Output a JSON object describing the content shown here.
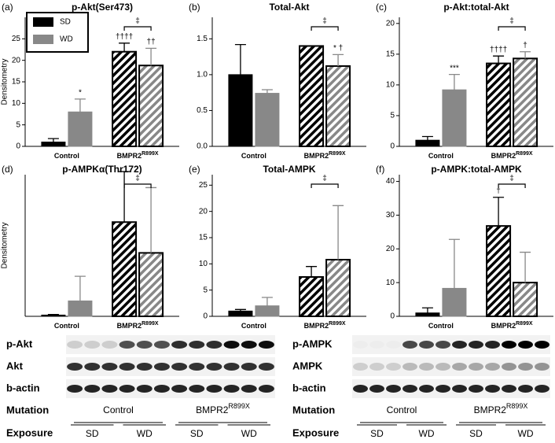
{
  "chart_data": [
    {
      "type": "bar",
      "panel": "(a)",
      "title": "p-Akt(Ser473)",
      "ylabel": "Densitometry",
      "categories": [
        "Control",
        "BMPR2"
      ],
      "category_sup": [
        null,
        "R899X"
      ],
      "hatched": [
        false,
        true
      ],
      "series": [
        {
          "name": "SD",
          "color": "#000000",
          "values": [
            1.0,
            22.0
          ],
          "errors": [
            0.8,
            2.0
          ],
          "markers": [
            null,
            "††††"
          ]
        },
        {
          "name": "WD",
          "color": "#888888",
          "values": [
            8.0,
            18.8
          ],
          "errors": [
            3.0,
            4.0
          ],
          "markers": [
            "*",
            "††"
          ]
        }
      ],
      "bracket_label": "‡",
      "legend": true,
      "legend_corner": "upper left",
      "ylim": [
        0,
        30
      ],
      "yticks": [
        0,
        5,
        10,
        15,
        20,
        25
      ]
    },
    {
      "type": "bar",
      "panel": "(b)",
      "title": "Total-Akt",
      "categories": [
        "Control",
        "BMPR2"
      ],
      "category_sup": [
        null,
        "R899X"
      ],
      "hatched": [
        false,
        true
      ],
      "series": [
        {
          "name": "SD",
          "color": "#000000",
          "values": [
            1.0,
            1.4
          ],
          "errors": [
            0.42,
            0.0
          ],
          "markers": [
            null,
            null
          ]
        },
        {
          "name": "WD",
          "color": "#888888",
          "values": [
            0.74,
            1.12
          ],
          "errors": [
            0.05,
            0.16
          ],
          "markers": [
            null,
            "* †"
          ]
        }
      ],
      "bracket_label": "‡",
      "legend": false,
      "ylim": [
        0,
        1.8
      ],
      "yticks": [
        {
          "value": 0,
          "label": "0.0"
        },
        {
          "value": 0.5,
          "label": "0.5"
        },
        {
          "value": 1,
          "label": "1.0"
        },
        {
          "value": 1.5,
          "label": "1.5"
        }
      ]
    },
    {
      "type": "bar",
      "panel": "(c)",
      "title": "p-Akt:total-Akt",
      "categories": [
        "Control",
        "BMPR2"
      ],
      "category_sup": [
        null,
        "R899X"
      ],
      "hatched": [
        false,
        true
      ],
      "series": [
        {
          "name": "SD",
          "color": "#000000",
          "values": [
            1.0,
            13.5
          ],
          "errors": [
            0.6,
            1.2
          ],
          "markers": [
            null,
            "††††"
          ]
        },
        {
          "name": "WD",
          "color": "#888888",
          "values": [
            9.2,
            14.3
          ],
          "errors": [
            2.5,
            1.1
          ],
          "markers": [
            "***",
            "†"
          ]
        }
      ],
      "bracket_label": "‡",
      "legend": false,
      "ylim": [
        0,
        21
      ],
      "yticks": [
        0,
        5,
        10,
        15,
        20
      ]
    },
    {
      "type": "bar",
      "panel": "(d)",
      "title": "p-AMPKα(Thr172)",
      "ylabel": "Densitometry",
      "categories": [
        "Control",
        "BMPR2"
      ],
      "category_sup": [
        null,
        "R899X"
      ],
      "hatched": [
        false,
        true
      ],
      "series": [
        {
          "name": "SD",
          "color": "#000000",
          "values": [
            2,
            153
          ],
          "errors": [
            1,
            82
          ],
          "markers": [
            null,
            null
          ]
        },
        {
          "name": "WD",
          "color": "#888888",
          "values": [
            25,
            103
          ],
          "errors": [
            40,
            106
          ],
          "markers": [
            null,
            null
          ]
        }
      ],
      "bracket_label": "‡",
      "legend": false,
      "ylim": [
        0,
        230
      ],
      "yticks": []
    },
    {
      "type": "bar",
      "panel": "(e)",
      "title": "Total-AMPK",
      "categories": [
        "Control",
        "BMPR2"
      ],
      "category_sup": [
        null,
        "R899X"
      ],
      "hatched": [
        false,
        true
      ],
      "series": [
        {
          "name": "SD",
          "color": "#000000",
          "values": [
            1.0,
            7.5
          ],
          "errors": [
            0.3,
            2.0
          ],
          "markers": [
            null,
            null
          ]
        },
        {
          "name": "WD",
          "color": "#888888",
          "values": [
            2.0,
            10.8
          ],
          "errors": [
            1.6,
            10.3
          ],
          "markers": [
            null,
            null
          ]
        }
      ],
      "bracket_label": "‡",
      "legend": false,
      "ylim": [
        0,
        27
      ],
      "yticks": [
        0,
        5,
        10,
        15,
        20,
        25
      ]
    },
    {
      "type": "bar",
      "panel": "(f)",
      "title": "p-AMPK:total-AMPK",
      "categories": [
        "Control",
        "BMPR2"
      ],
      "category_sup": [
        null,
        "R899X"
      ],
      "hatched": [
        false,
        true
      ],
      "series": [
        {
          "name": "SD",
          "color": "#000000",
          "values": [
            1.0,
            26.8
          ],
          "errors": [
            1.5,
            8.5
          ],
          "markers": [
            null,
            "†"
          ]
        },
        {
          "name": "WD",
          "color": "#888888",
          "values": [
            8.3,
            10.0
          ],
          "errors": [
            14.5,
            9.0
          ],
          "markers": [
            null,
            null
          ]
        }
      ],
      "bracket_label": "‡",
      "legend": false,
      "ylim": [
        0,
        42
      ],
      "yticks": [
        0,
        10,
        20,
        30,
        40
      ]
    }
  ],
  "blots": [
    {
      "rows": [
        "p-Akt",
        "Akt",
        "b-actin"
      ],
      "mutation_label": "Mutation",
      "mutations": [
        "Control",
        "BMPR2"
      ],
      "mutation_sup": [
        null,
        "R899X"
      ],
      "exposure_label": "Exposure",
      "exposures": [
        "SD",
        "WD",
        "SD",
        "WD"
      ]
    },
    {
      "rows": [
        "p-AMPK",
        "AMPK",
        "b-actin"
      ],
      "mutation_label": "Mutation",
      "mutations": [
        "Control",
        "BMPR2"
      ],
      "mutation_sup": [
        null,
        "R899X"
      ],
      "exposure_label": "Exposure",
      "exposures": [
        "SD",
        "WD",
        "SD",
        "WD"
      ]
    }
  ]
}
